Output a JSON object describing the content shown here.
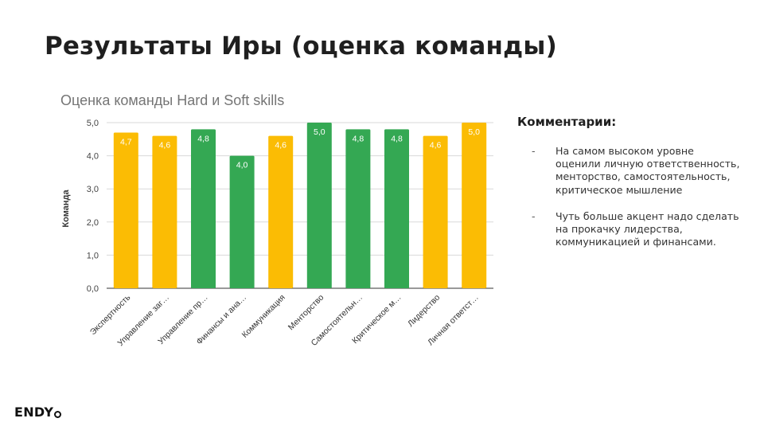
{
  "slide": {
    "title": "Результаты Иры (оценка команды)"
  },
  "chart_data": {
    "type": "bar",
    "title": "Оценка команды Hard и Soft skills",
    "xlabel": "",
    "ylabel": "Команда",
    "ylim": [
      0,
      5
    ],
    "yticks": [
      "0,0",
      "1,0",
      "2,0",
      "3,0",
      "4,0",
      "5,0"
    ],
    "grid": true,
    "legend": "none",
    "categories": [
      "Экспертность",
      "Управление заг…",
      "Управление пр…",
      "Финансы и ана…",
      "Коммуникация",
      "Менторство",
      "Самостоятельн…",
      "Критическое м…",
      "Лидерство",
      "Личная ответст…"
    ],
    "values": [
      4.7,
      4.6,
      4.8,
      4.0,
      4.6,
      5.0,
      4.8,
      4.8,
      4.6,
      5.0
    ],
    "value_labels": [
      "4,7",
      "4,6",
      "4,8",
      "4,0",
      "4,6",
      "5,0",
      "4,8",
      "4,8",
      "4,6",
      "5,0"
    ],
    "bar_colors": [
      "#fbbc04",
      "#fbbc04",
      "#34a853",
      "#34a853",
      "#fbbc04",
      "#34a853",
      "#34a853",
      "#34a853",
      "#fbbc04",
      "#fbbc04"
    ]
  },
  "comments": {
    "title": "Комментарии:",
    "items": [
      "На самом высоком уровне оценили личную ответственность, менторство, самостоятельность, критическое мышление",
      "Чуть больше акцент надо сделать на прокачку лидерства, коммуникацией и финансами."
    ],
    "bullet": "-"
  },
  "logo": {
    "text": "ENDY"
  }
}
